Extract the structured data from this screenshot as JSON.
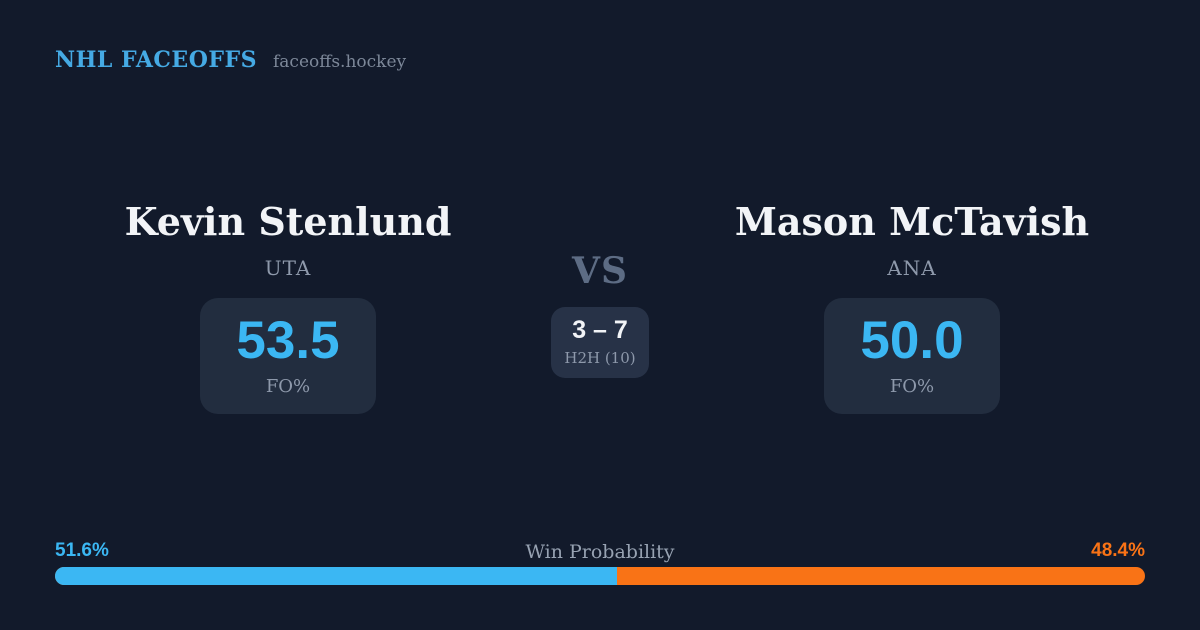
{
  "header": {
    "brand": "NHL FACEOFFS",
    "site": "faceoffs.hockey"
  },
  "players": {
    "left": {
      "name": "Kevin Stenlund",
      "team": "UTA",
      "fo_pct": "53.5",
      "stat_label": "FO%"
    },
    "right": {
      "name": "Mason McTavish",
      "team": "ANA",
      "fo_pct": "50.0",
      "stat_label": "FO%"
    }
  },
  "center": {
    "vs": "VS",
    "h2h_score": "3 – 7",
    "h2h_label": "H2H (10)"
  },
  "win_probability": {
    "title": "Win Probability",
    "left_label": "51.6%",
    "right_label": "48.4%",
    "left_pct": 51.6,
    "right_pct": 48.4
  },
  "colors": {
    "background": "#121a2b",
    "card": "#222d3f",
    "h2h_box": "#273247",
    "accent_blue": "#3bb7f3",
    "header_blue": "#45aae4",
    "accent_orange": "#f97316",
    "text_white": "#f2f4f7",
    "text_muted": "#8e99ab",
    "vs_gray": "#5d6c84",
    "site_gray": "#7d8899",
    "win_title_gray": "#97a2b2"
  }
}
